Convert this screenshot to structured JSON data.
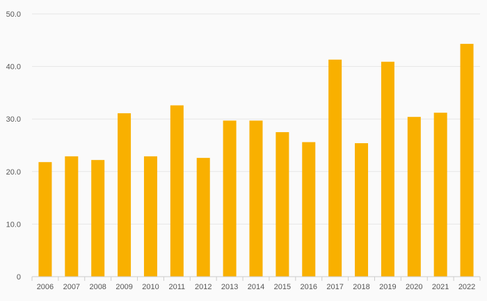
{
  "chart_data": {
    "type": "bar",
    "title": "",
    "xlabel": "",
    "ylabel": "",
    "categories": [
      "2006",
      "2007",
      "2008",
      "2009",
      "2010",
      "2011",
      "2012",
      "2013",
      "2014",
      "2015",
      "2016",
      "2017",
      "2018",
      "2019",
      "2020",
      "2021",
      "2022"
    ],
    "values": [
      21.8,
      22.9,
      22.2,
      31.1,
      22.9,
      32.6,
      22.6,
      29.7,
      29.7,
      27.5,
      25.6,
      41.3,
      25.4,
      40.9,
      30.4,
      31.2,
      44.3
    ],
    "ylim": [
      0,
      50
    ],
    "yticks": [
      {
        "value": 0,
        "label": "0"
      },
      {
        "value": 10,
        "label": "10.0"
      },
      {
        "value": 20,
        "label": "20.0"
      },
      {
        "value": 30,
        "label": "30.0"
      },
      {
        "value": 40,
        "label": "40.0"
      },
      {
        "value": 50,
        "label": "50.0"
      }
    ],
    "grid": true,
    "legend": "none",
    "bar_color": "#f9b000",
    "grid_color": "#e6e6e6",
    "axis_color": "#cccccc",
    "background": "#fafafa"
  }
}
